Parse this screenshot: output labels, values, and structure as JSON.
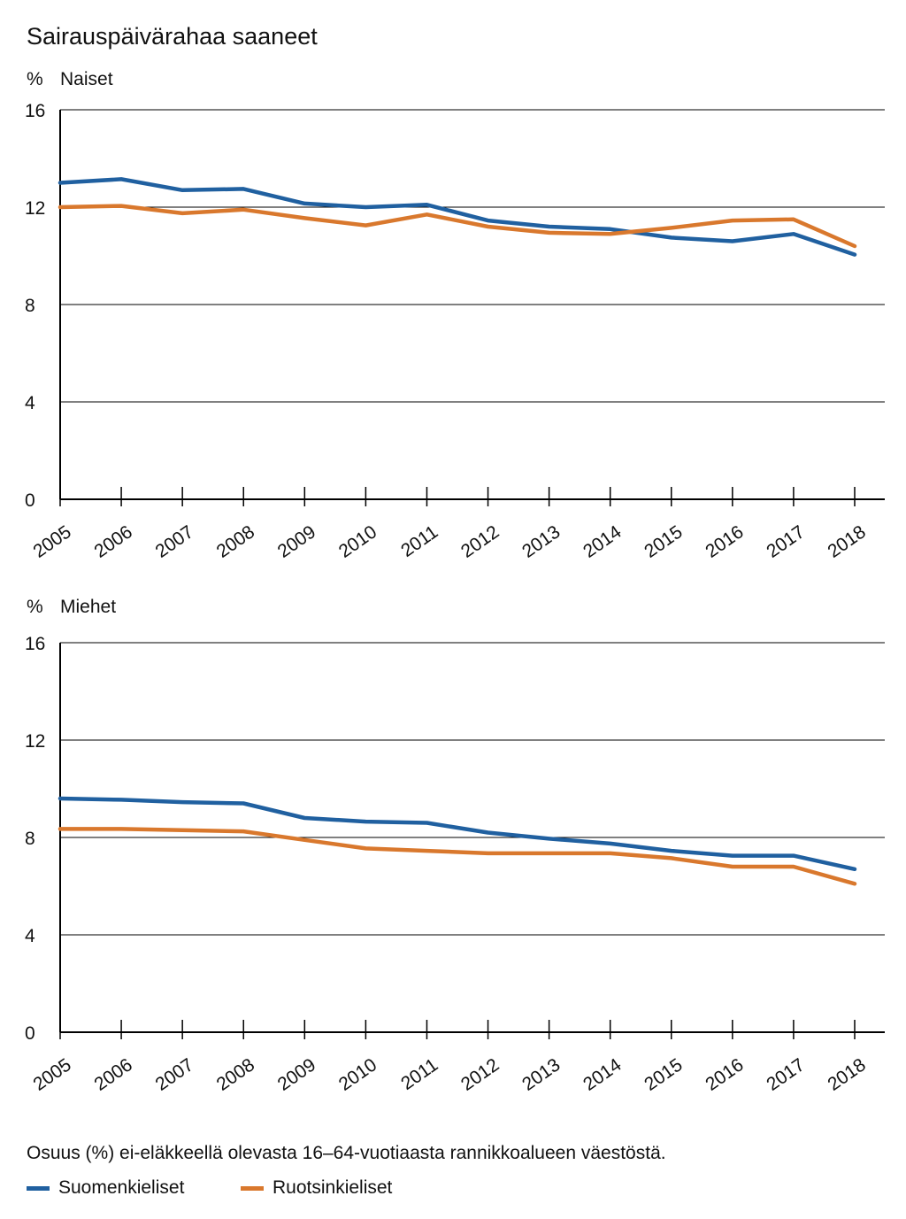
{
  "title": "Sairauspäivärahaa saaneet",
  "footnote": "Osuus (%) ei-eläkkeellä olevasta 16–64-vuotiaasta rannikkoalueen väestöstä.",
  "legend": [
    {
      "label": "Suomenkieliset",
      "color": "#2060a0"
    },
    {
      "label": "Ruotsinkieliset",
      "color": "#d9782d"
    }
  ],
  "chart_data": [
    {
      "type": "line",
      "title": "Naiset",
      "ylabel": "%",
      "x": [
        "2005",
        "2006",
        "2007",
        "2008",
        "2009",
        "2010",
        "2011",
        "2012",
        "2013",
        "2014",
        "2015",
        "2016",
        "2017",
        "2018"
      ],
      "yticks": [
        "0",
        "4",
        "8",
        "12",
        "16"
      ],
      "ylim": [
        0,
        16
      ],
      "grid": true,
      "series": [
        {
          "name": "Suomenkieliset",
          "color": "#2060a0",
          "values": [
            13.0,
            13.15,
            12.7,
            12.75,
            12.15,
            12.0,
            12.1,
            11.45,
            11.2,
            11.1,
            10.75,
            10.6,
            10.9,
            10.05
          ]
        },
        {
          "name": "Ruotsinkieliset",
          "color": "#d9782d",
          "values": [
            12.0,
            12.05,
            11.75,
            11.9,
            11.55,
            11.25,
            11.7,
            11.2,
            10.95,
            10.9,
            11.15,
            11.45,
            11.5,
            10.4
          ]
        }
      ]
    },
    {
      "type": "line",
      "title": "Miehet",
      "ylabel": "%",
      "x": [
        "2005",
        "2006",
        "2007",
        "2008",
        "2009",
        "2010",
        "2011",
        "2012",
        "2013",
        "2014",
        "2015",
        "2016",
        "2017",
        "2018"
      ],
      "yticks": [
        "0",
        "4",
        "8",
        "12",
        "16"
      ],
      "ylim": [
        0,
        16
      ],
      "grid": true,
      "series": [
        {
          "name": "Suomenkieliset",
          "color": "#2060a0",
          "values": [
            9.6,
            9.55,
            9.45,
            9.4,
            8.8,
            8.65,
            8.6,
            8.2,
            7.95,
            7.75,
            7.45,
            7.25,
            7.25,
            6.7
          ]
        },
        {
          "name": "Ruotsinkieliset",
          "color": "#d9782d",
          "values": [
            8.35,
            8.35,
            8.3,
            8.25,
            7.9,
            7.55,
            7.45,
            7.35,
            7.35,
            7.35,
            7.15,
            6.8,
            6.8,
            6.1
          ]
        }
      ]
    }
  ]
}
